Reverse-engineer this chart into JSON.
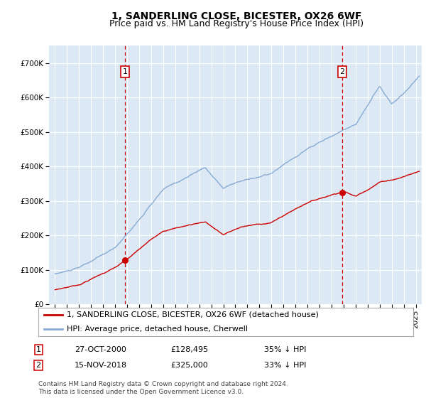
{
  "title": "1, SANDERLING CLOSE, BICESTER, OX26 6WF",
  "subtitle": "Price paid vs. HM Land Registry's House Price Index (HPI)",
  "ylim": [
    0,
    750000
  ],
  "xlim_start": 1994.5,
  "xlim_end": 2025.5,
  "yticks": [
    0,
    100000,
    200000,
    300000,
    400000,
    500000,
    600000,
    700000
  ],
  "ytick_labels": [
    "£0",
    "£100K",
    "£200K",
    "£300K",
    "£400K",
    "£500K",
    "£600K",
    "£700K"
  ],
  "background_color": "#dce9f5",
  "red_line_color": "#cc0000",
  "blue_line_color": "#88aad4",
  "vline_color": "#cc0000",
  "marker1_x": 2000.82,
  "marker1_y": 128495,
  "marker2_x": 2018.88,
  "marker2_y": 325000,
  "legend_line1": "1, SANDERLING CLOSE, BICESTER, OX26 6WF (detached house)",
  "legend_line2": "HPI: Average price, detached house, Cherwell",
  "table_row1": [
    "1",
    "27-OCT-2000",
    "£128,495",
    "35% ↓ HPI"
  ],
  "table_row2": [
    "2",
    "15-NOV-2018",
    "£325,000",
    "33% ↓ HPI"
  ],
  "footnote": "Contains HM Land Registry data © Crown copyright and database right 2024.\nThis data is licensed under the Open Government Licence v3.0.",
  "title_fontsize": 10,
  "subtitle_fontsize": 9,
  "tick_fontsize": 7.5,
  "legend_fontsize": 8,
  "table_fontsize": 8,
  "footnote_fontsize": 6.5,
  "grid_color": "#ffffff",
  "grid_linewidth": 0.8
}
